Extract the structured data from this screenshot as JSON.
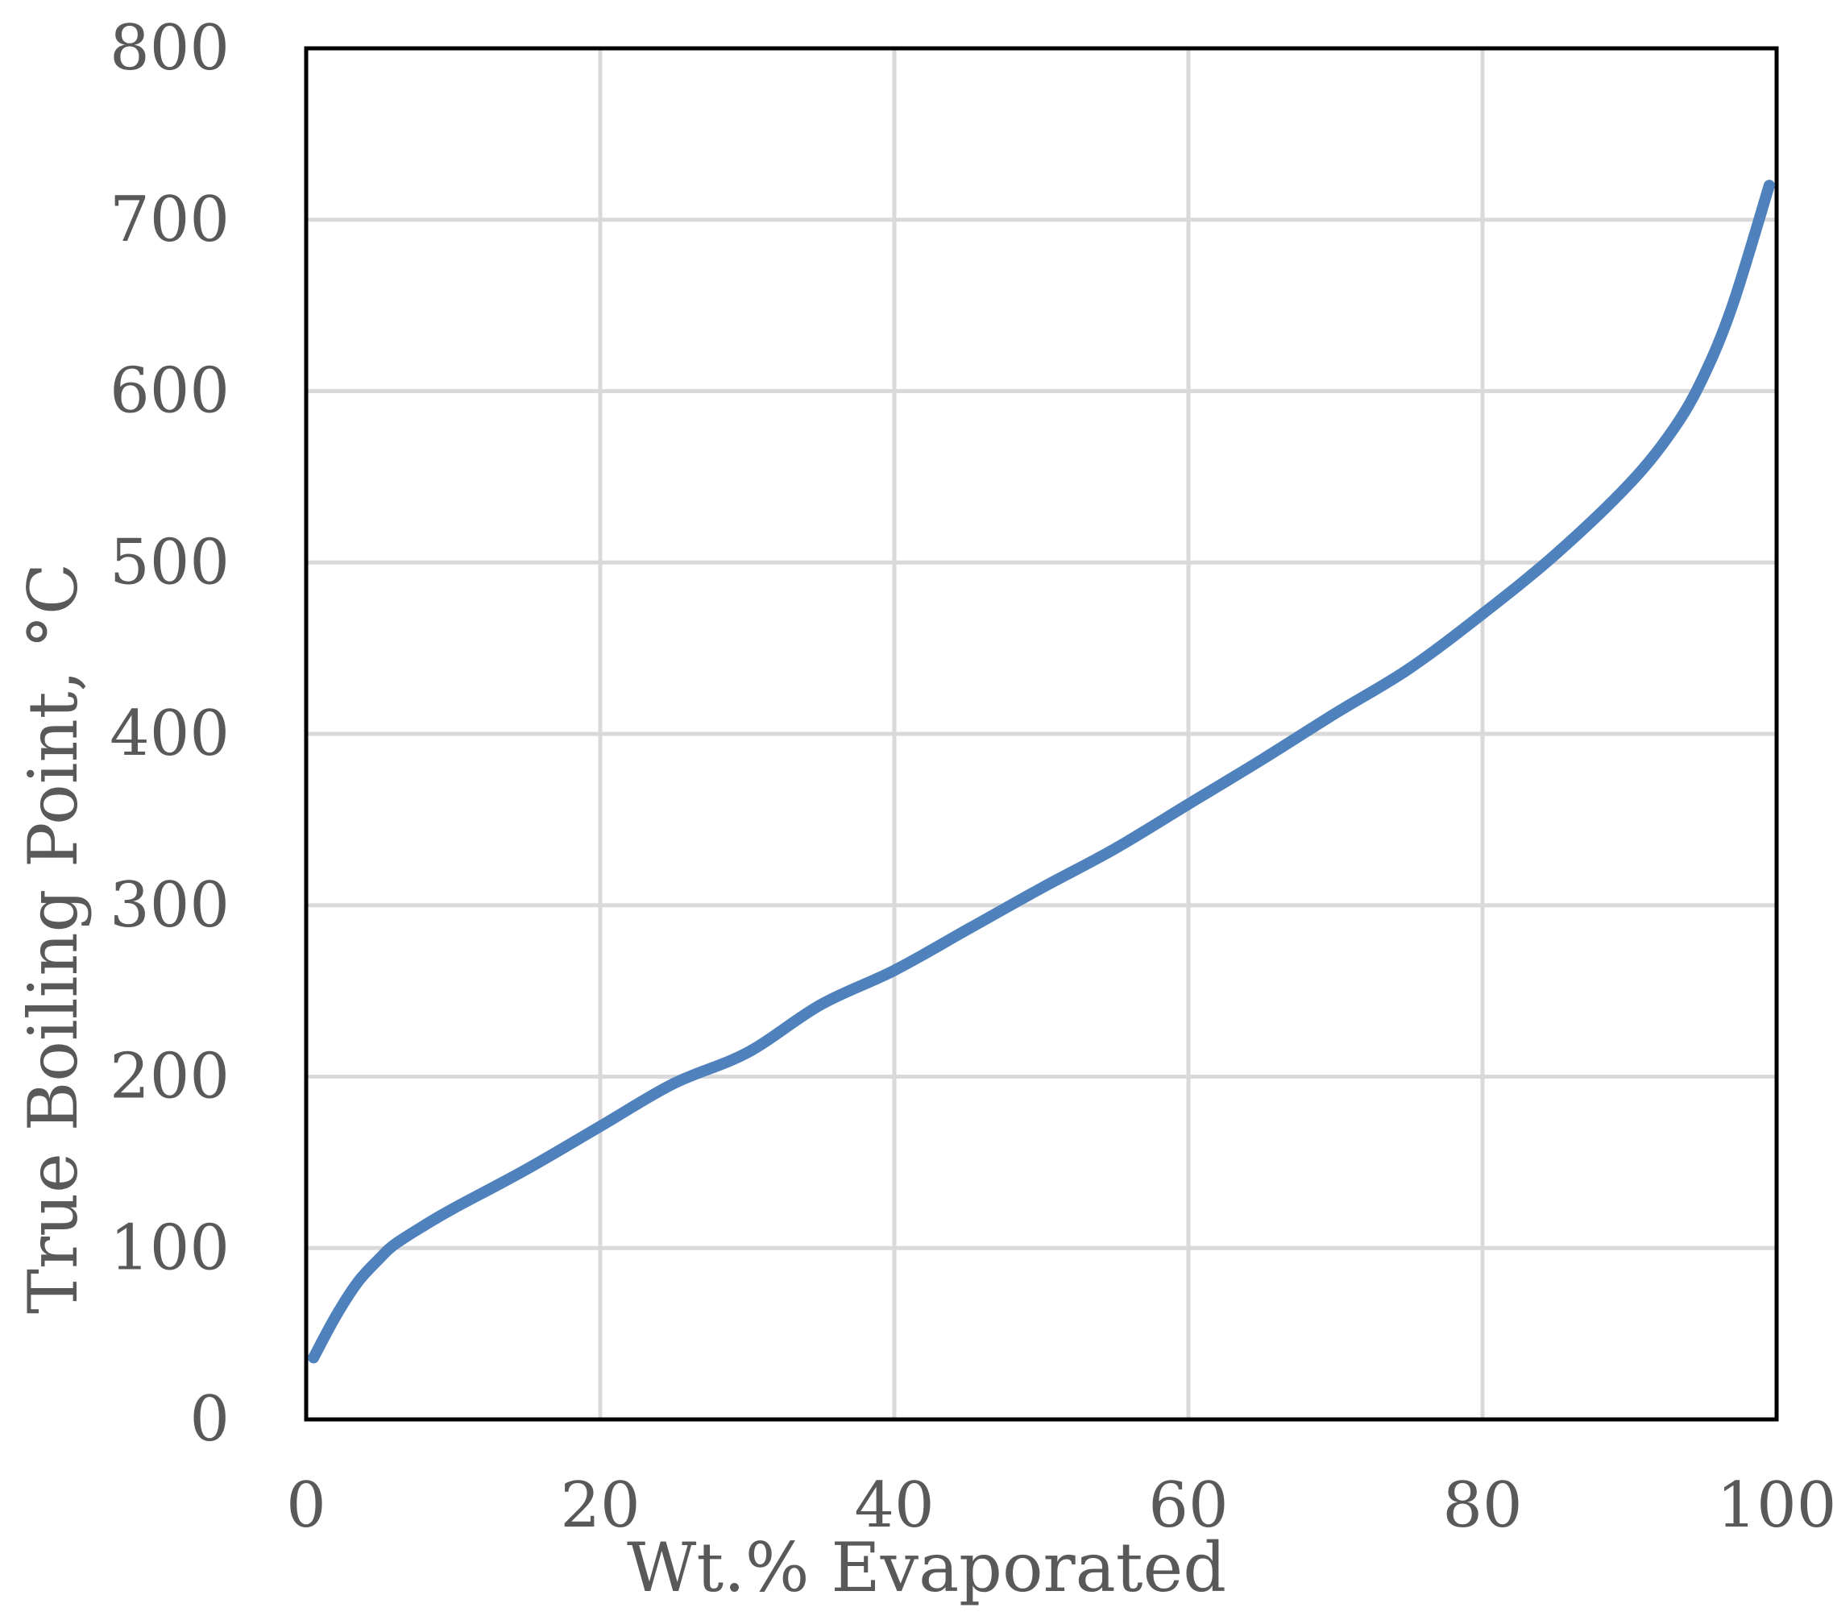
{
  "chart_data": {
    "type": "line",
    "title": "",
    "xlabel": "Wt.%  Evaporated",
    "ylabel": "True Boiling Point, °C",
    "xlim": [
      0,
      100
    ],
    "ylim": [
      0,
      800
    ],
    "x_ticks": [
      "0",
      "20",
      "40",
      "60",
      "80",
      "100"
    ],
    "y_ticks": [
      "0",
      "100",
      "200",
      "300",
      "400",
      "500",
      "600",
      "700",
      "800"
    ],
    "grid": true,
    "legend": "none",
    "series": [
      {
        "color": "#4F81BD",
        "x": [
          0.5,
          2,
          3.5,
          5,
          6,
          8,
          10,
          15,
          20,
          25,
          30,
          35,
          40,
          45,
          50,
          55,
          60,
          65,
          70,
          75,
          80,
          85,
          90,
          93,
          95,
          97,
          99.5
        ],
        "y": [
          36,
          60,
          80,
          94,
          102,
          113,
          123,
          146,
          171,
          196,
          214,
          242,
          262,
          286,
          310,
          333,
          359,
          385,
          412,
          438,
          470,
          505,
          546,
          578,
          608,
          650,
          720
        ]
      }
    ]
  }
}
